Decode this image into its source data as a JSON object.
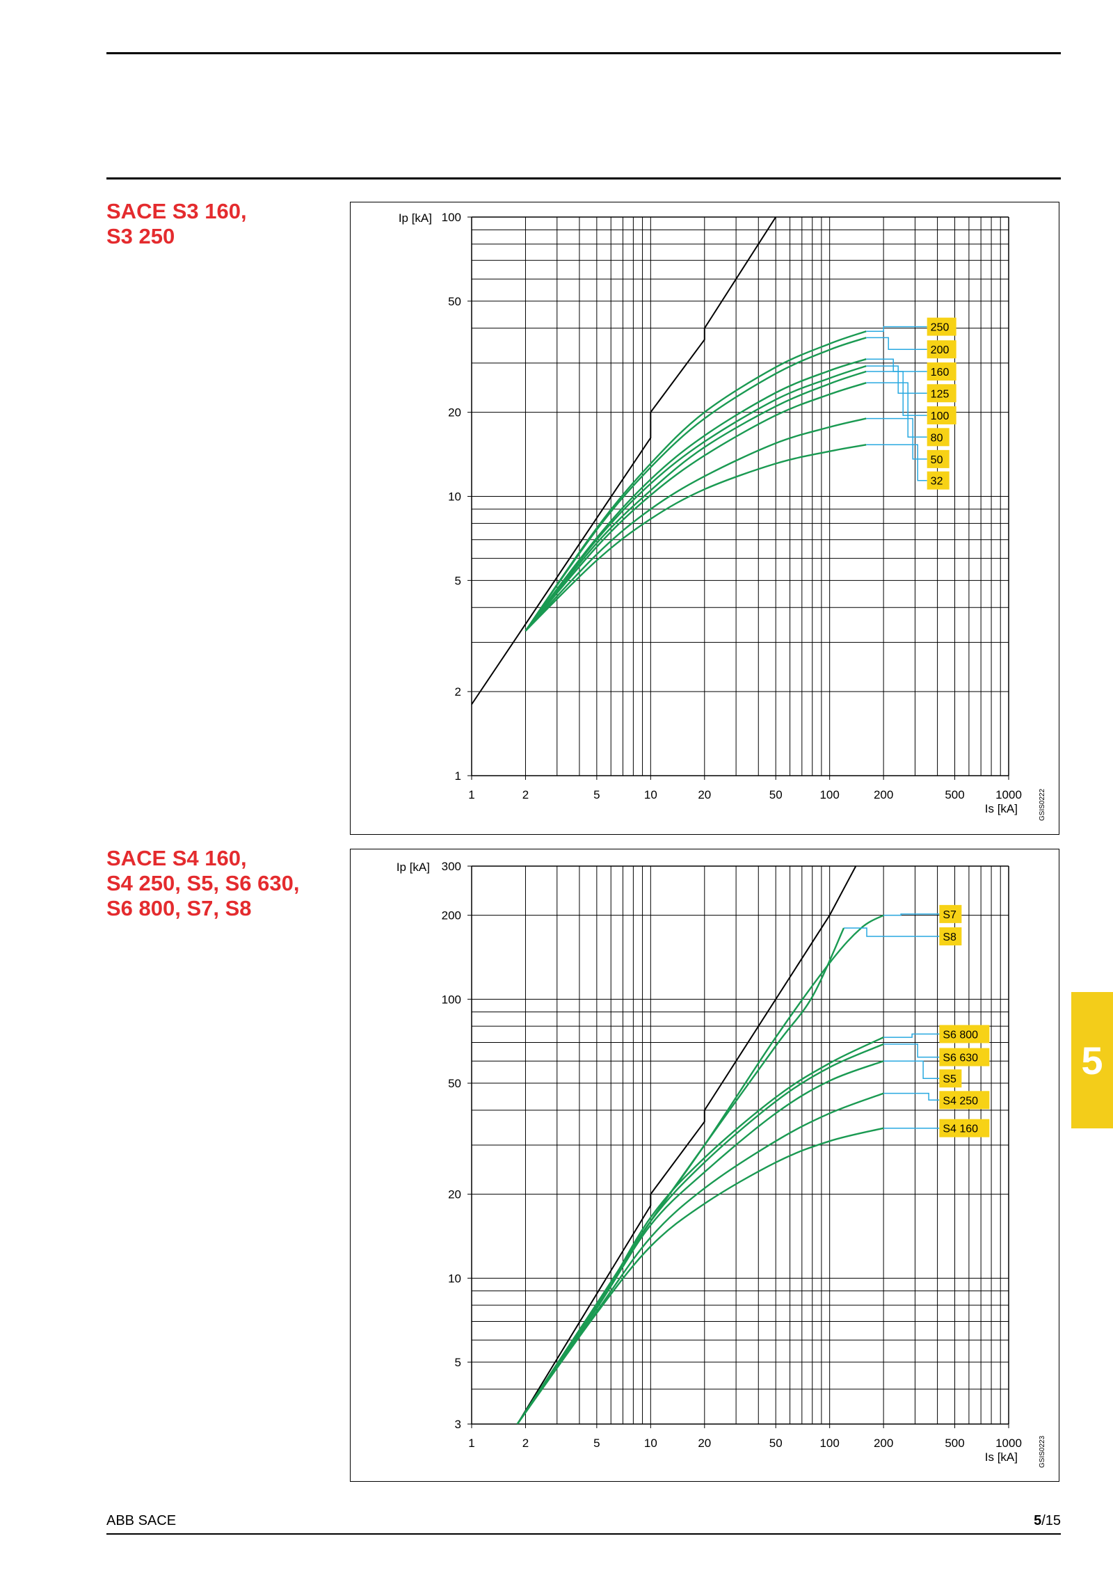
{
  "page": {
    "section_1_title": "SACE S3 160,\nS3 250",
    "section_2_title": "SACE S4 160,\nS4 250, S5, S6 630,\nS6 800, S7, S8",
    "tab_number": "5",
    "footer_left": "ABB SACE",
    "footer_chapter": "5",
    "footer_page": "/15"
  },
  "colors": {
    "curve": "#1a9a52",
    "leader": "#29a9e0",
    "label_bg": "#f7d216",
    "grid": "#000000",
    "title": "#e42b2e",
    "tab": "#f3cd1a"
  },
  "chart_data": [
    {
      "type": "line",
      "title": "",
      "xlabel": "Is [kA]",
      "ylabel": "Ip [kA]",
      "xscale": "log",
      "yscale": "log",
      "xlim": [
        1,
        1000
      ],
      "ylim": [
        1,
        100
      ],
      "x_ticks": [
        1,
        2,
        5,
        10,
        20,
        50,
        100,
        200,
        500,
        1000
      ],
      "y_ticks": [
        1,
        2,
        5,
        10,
        20,
        50,
        100
      ],
      "grid": true,
      "code": "GSIS0222",
      "reference_line": {
        "name": "",
        "points": [
          [
            1,
            1.8
          ],
          [
            10,
            16.2
          ],
          [
            10,
            20
          ],
          [
            20,
            36.4
          ],
          [
            20,
            40
          ],
          [
            50,
            100
          ]
        ]
      },
      "label_x": 350,
      "series": [
        {
          "name": "250",
          "label_y": 40.5,
          "curve": [
            [
              2,
              3.3
            ],
            [
              5,
              7.7
            ],
            [
              10,
              13.1
            ],
            [
              20,
              20
            ],
            [
              50,
              29
            ],
            [
              100,
              35.2
            ],
            [
              160,
              39
            ]
          ]
        },
        {
          "name": "200",
          "label_y": 33.6,
          "curve": [
            [
              2,
              3.3
            ],
            [
              5,
              7.6
            ],
            [
              10,
              12.7
            ],
            [
              20,
              19
            ],
            [
              50,
              27.5
            ],
            [
              100,
              33.5
            ],
            [
              160,
              37
            ]
          ]
        },
        {
          "name": "160",
          "label_y": 28,
          "curve": [
            [
              2,
              3.3
            ],
            [
              5,
              7.1
            ],
            [
              10,
              11.5
            ],
            [
              20,
              16.5
            ],
            [
              50,
              23.5
            ],
            [
              100,
              28.2
            ],
            [
              160,
              31
            ]
          ]
        },
        {
          "name": "125",
          "label_y": 23.4,
          "curve": [
            [
              2,
              3.3
            ],
            [
              5,
              7
            ],
            [
              10,
              11.1
            ],
            [
              20,
              15.7
            ],
            [
              50,
              22.2
            ],
            [
              100,
              26.5
            ],
            [
              160,
              29.3
            ]
          ]
        },
        {
          "name": "100",
          "label_y": 19.5,
          "curve": [
            [
              2,
              3.3
            ],
            [
              5,
              6.8
            ],
            [
              10,
              10.5
            ],
            [
              20,
              15
            ],
            [
              50,
              21
            ],
            [
              100,
              25.3
            ],
            [
              160,
              28
            ]
          ]
        },
        {
          "name": "80",
          "label_y": 16.3,
          "curve": [
            [
              2,
              3.3
            ],
            [
              5,
              6.6
            ],
            [
              10,
              10.1
            ],
            [
              20,
              14
            ],
            [
              50,
              19.5
            ],
            [
              100,
              23.2
            ],
            [
              160,
              25.5
            ]
          ]
        },
        {
          "name": "50",
          "label_y": 13.6,
          "curve": [
            [
              2,
              3.3
            ],
            [
              5,
              6.2
            ],
            [
              10,
              9
            ],
            [
              20,
              11.8
            ],
            [
              50,
              15.5
            ],
            [
              100,
              17.7
            ],
            [
              160,
              19
            ]
          ]
        },
        {
          "name": "32",
          "label_y": 11.4,
          "curve": [
            [
              2,
              3.3
            ],
            [
              5,
              5.9
            ],
            [
              10,
              8.3
            ],
            [
              20,
              10.6
            ],
            [
              50,
              13.1
            ],
            [
              100,
              14.5
            ],
            [
              160,
              15.3
            ]
          ]
        }
      ]
    },
    {
      "type": "line",
      "title": "",
      "xlabel": "Is [kA]",
      "ylabel": "Ip [kA]",
      "xscale": "log",
      "yscale": "log",
      "xlim": [
        1,
        1000
      ],
      "ylim": [
        3,
        300
      ],
      "x_ticks": [
        1,
        2,
        5,
        10,
        20,
        50,
        100,
        200,
        500,
        1000
      ],
      "y_ticks": [
        3,
        5,
        10,
        20,
        50,
        100,
        200,
        300
      ],
      "grid": true,
      "code": "GSIS0223",
      "reference_line": {
        "name": "",
        "points": [
          [
            1.8,
            3
          ],
          [
            10,
            18.2
          ],
          [
            10,
            20
          ],
          [
            20,
            36.4
          ],
          [
            20,
            40
          ],
          [
            100,
            200
          ],
          [
            140,
            300
          ]
        ]
      },
      "label_x": 410,
      "series": [
        {
          "name": "S7",
          "label_y": 202,
          "curve": [
            [
              1.8,
              3
            ],
            [
              5,
              8.1
            ],
            [
              10,
              16
            ],
            [
              20,
              30
            ],
            [
              50,
              73
            ],
            [
              100,
              135
            ],
            [
              150,
              180
            ],
            [
              200,
              200
            ]
          ]
        },
        {
          "name": "S8",
          "label_y": 168,
          "curve": [
            [
              1.8,
              3
            ],
            [
              5,
              8.1
            ],
            [
              10,
              16
            ],
            [
              20,
              30
            ],
            [
              50,
              68
            ],
            [
              80,
              102
            ],
            [
              120,
              180
            ]
          ]
        },
        {
          "name": "S6 800",
          "label_y": 75,
          "curve": [
            [
              1.8,
              3
            ],
            [
              5,
              7.9
            ],
            [
              10,
              16.5
            ],
            [
              20,
              27
            ],
            [
              50,
              44.5
            ],
            [
              100,
              59
            ],
            [
              200,
              73
            ]
          ]
        },
        {
          "name": "S6 630",
          "label_y": 62,
          "curve": [
            [
              1.8,
              3
            ],
            [
              5,
              7.9
            ],
            [
              10,
              16
            ],
            [
              20,
              26
            ],
            [
              50,
              43
            ],
            [
              100,
              57
            ],
            [
              200,
              69
            ]
          ]
        },
        {
          "name": "S5",
          "label_y": 52,
          "curve": [
            [
              1.8,
              3
            ],
            [
              5,
              7.8
            ],
            [
              10,
              15.5
            ],
            [
              20,
              24
            ],
            [
              50,
              39
            ],
            [
              100,
              51
            ],
            [
              200,
              60
            ]
          ]
        },
        {
          "name": "S4 250",
          "label_y": 43.5,
          "curve": [
            [
              1.8,
              3
            ],
            [
              5,
              7.6
            ],
            [
              10,
              14
            ],
            [
              20,
              21
            ],
            [
              50,
              31
            ],
            [
              100,
              39
            ],
            [
              200,
              46
            ]
          ]
        },
        {
          "name": "S4 160",
          "label_y": 34.5,
          "curve": [
            [
              1.8,
              3
            ],
            [
              5,
              7.5
            ],
            [
              10,
              13
            ],
            [
              20,
              18.5
            ],
            [
              50,
              26
            ],
            [
              100,
              31
            ],
            [
              200,
              34.5
            ]
          ]
        }
      ]
    }
  ]
}
